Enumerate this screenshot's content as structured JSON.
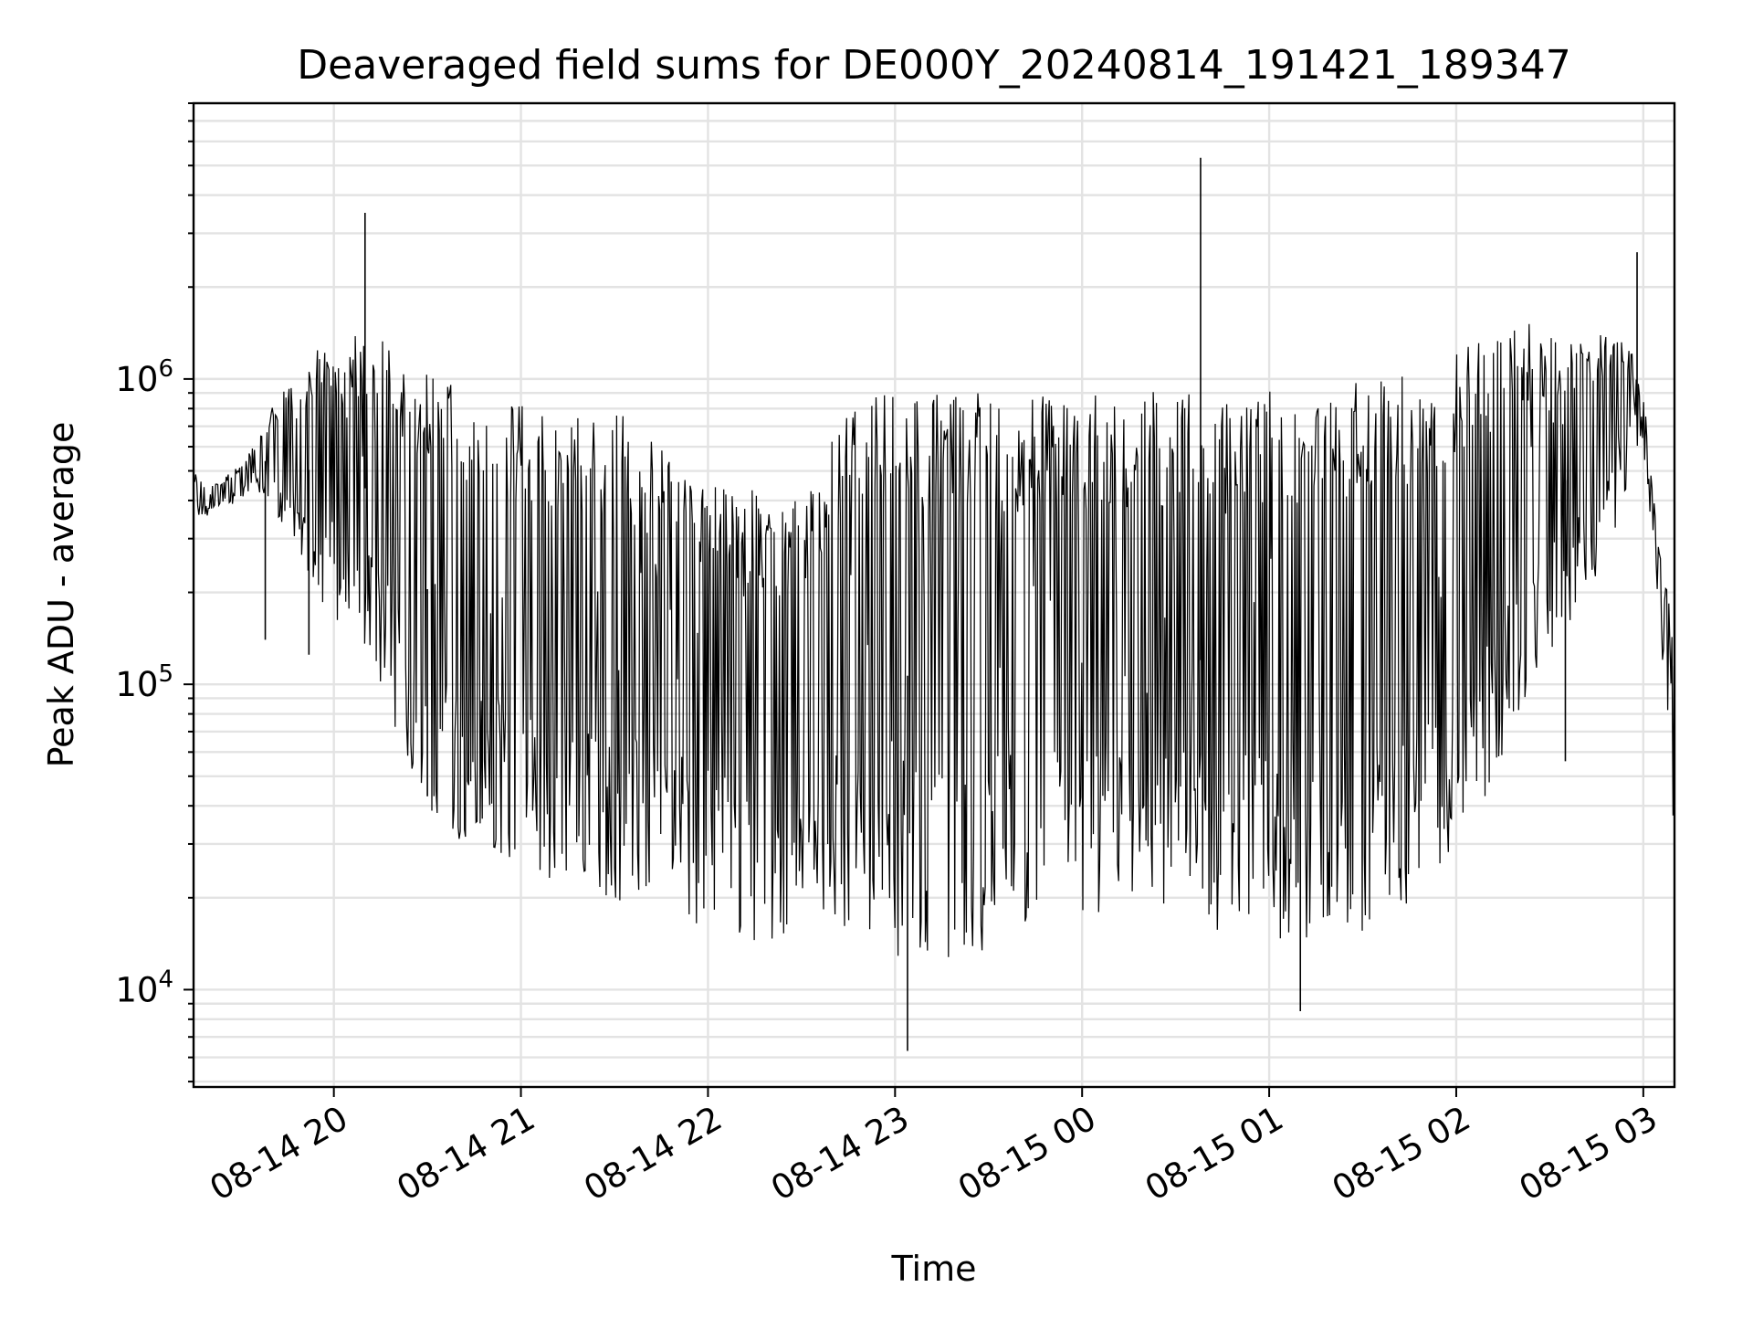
{
  "chart_data": {
    "type": "line",
    "title": "Deaveraged field sums for DE000Y_20240814_191421_189347",
    "xlabel": "Time",
    "ylabel": "Peak ADU - average",
    "y_scale": "log",
    "xlim": [
      "2024-08-14 19:15",
      "2024-08-15 03:10"
    ],
    "ylim": [
      4800,
      8000000
    ],
    "grid": true,
    "legend": "none",
    "line_color": "#000000",
    "x_ticks": [
      {
        "value": "2024-08-14 20:00",
        "label": "08-14 20"
      },
      {
        "value": "2024-08-14 21:00",
        "label": "08-14 21"
      },
      {
        "value": "2024-08-14 22:00",
        "label": "08-14 22"
      },
      {
        "value": "2024-08-14 23:00",
        "label": "08-14 23"
      },
      {
        "value": "2024-08-15 00:00",
        "label": "08-15 00"
      },
      {
        "value": "2024-08-15 01:00",
        "label": "08-15 01"
      },
      {
        "value": "2024-08-15 02:00",
        "label": "08-15 02"
      },
      {
        "value": "2024-08-15 03:00",
        "label": "08-15 03"
      }
    ],
    "y_ticks": [
      {
        "value": 10000,
        "base": "10",
        "exp": "4"
      },
      {
        "value": 100000,
        "base": "10",
        "exp": "5"
      },
      {
        "value": 1000000,
        "base": "10",
        "exp": "6"
      }
    ],
    "series": [
      {
        "x": [
          "2024-08-14 19:15",
          "2024-08-14 19:20",
          "2024-08-14 19:25",
          "2024-08-14 19:30",
          "2024-08-14 19:35",
          "2024-08-14 19:40",
          "2024-08-14 19:45",
          "2024-08-14 19:50",
          "2024-08-14 19:55",
          "2024-08-14 20:00",
          "2024-08-14 20:05",
          "2024-08-14 20:10",
          "2024-08-14 20:15",
          "2024-08-14 20:20",
          "2024-08-14 20:25",
          "2024-08-14 20:30",
          "2024-08-14 20:35",
          "2024-08-14 20:40",
          "2024-08-14 20:45",
          "2024-08-14 20:50",
          "2024-08-14 20:55",
          "2024-08-14 21:00",
          "2024-08-14 21:05",
          "2024-08-14 21:10",
          "2024-08-14 21:15",
          "2024-08-14 21:20",
          "2024-08-14 21:25",
          "2024-08-14 21:30",
          "2024-08-14 21:35",
          "2024-08-14 21:40",
          "2024-08-14 21:45",
          "2024-08-14 21:50",
          "2024-08-14 21:55",
          "2024-08-14 22:00",
          "2024-08-14 22:05",
          "2024-08-14 22:10",
          "2024-08-14 22:15",
          "2024-08-14 22:20",
          "2024-08-14 22:25",
          "2024-08-14 22:30",
          "2024-08-14 22:35",
          "2024-08-14 22:40",
          "2024-08-14 22:45",
          "2024-08-14 22:50",
          "2024-08-14 22:55",
          "2024-08-14 23:00",
          "2024-08-14 23:05",
          "2024-08-14 23:10",
          "2024-08-14 23:15",
          "2024-08-14 23:20",
          "2024-08-14 23:25",
          "2024-08-14 23:30",
          "2024-08-14 23:35",
          "2024-08-14 23:40",
          "2024-08-14 23:45",
          "2024-08-14 23:50",
          "2024-08-14 23:55",
          "2024-08-15 00:00",
          "2024-08-15 00:05",
          "2024-08-15 00:10",
          "2024-08-15 00:15",
          "2024-08-15 00:20",
          "2024-08-15 00:25",
          "2024-08-15 00:30",
          "2024-08-15 00:35",
          "2024-08-15 00:40",
          "2024-08-15 00:45",
          "2024-08-15 00:50",
          "2024-08-15 00:55",
          "2024-08-15 01:00",
          "2024-08-15 01:05",
          "2024-08-15 01:10",
          "2024-08-15 01:15",
          "2024-08-15 01:20",
          "2024-08-15 01:25",
          "2024-08-15 01:30",
          "2024-08-15 01:35",
          "2024-08-15 01:40",
          "2024-08-15 01:45",
          "2024-08-15 01:50",
          "2024-08-15 01:55",
          "2024-08-15 02:00",
          "2024-08-15 02:05",
          "2024-08-15 02:10",
          "2024-08-15 02:15",
          "2024-08-15 02:20",
          "2024-08-15 02:25",
          "2024-08-15 02:30",
          "2024-08-15 02:35",
          "2024-08-15 02:40",
          "2024-08-15 02:45",
          "2024-08-15 02:50",
          "2024-08-15 02:55",
          "2024-08-15 03:00",
          "2024-08-15 03:05",
          "2024-08-15 03:10"
        ],
        "high": [
          500000,
          450000,
          480000,
          520000,
          620000,
          850000,
          950000,
          1000000,
          1300000,
          1400000,
          1300000,
          1600000,
          1500000,
          1200000,
          1100000,
          1050000,
          1000000,
          950000,
          900000,
          880000,
          860000,
          850000,
          830000,
          820000,
          800000,
          790000,
          780000,
          770000,
          760000,
          700000,
          650000,
          600000,
          550000,
          500000,
          480000,
          460000,
          430000,
          400000,
          380000,
          420000,
          500000,
          700000,
          850000,
          900000,
          900000,
          920000,
          900000,
          900000,
          900000,
          880000,
          900000,
          900000,
          900000,
          900000,
          900000,
          900000,
          900000,
          900000,
          900000,
          900000,
          900000,
          920000,
          900000,
          900000,
          900000,
          900000,
          900000,
          920000,
          950000,
          950000,
          950000,
          950000,
          1000000,
          1000000,
          1050000,
          1000000,
          1100000,
          1100000,
          1100000,
          1150000,
          1200000,
          1250000,
          1350000,
          1400000,
          1500000,
          1500000,
          1550000,
          1500000,
          1450000,
          1400000,
          1450000,
          1500000,
          1350000,
          900000,
          280000,
          150000
        ],
        "low": [
          350000,
          350000,
          380000,
          400000,
          450000,
          350000,
          300000,
          250000,
          200000,
          150000,
          130000,
          120000,
          100000,
          70000,
          50000,
          40000,
          35000,
          30000,
          28000,
          27000,
          26000,
          25000,
          24000,
          23000,
          22000,
          21000,
          20000,
          19000,
          18500,
          18000,
          17500,
          17000,
          16500,
          16000,
          15500,
          15000,
          14500,
          14000,
          15000,
          16000,
          17000,
          16000,
          15000,
          14000,
          13500,
          13000,
          12500,
          12000,
          12000,
          12500,
          13000,
          13500,
          14000,
          14500,
          15000,
          15000,
          15500,
          16000,
          17000,
          18000,
          18000,
          17500,
          17000,
          16500,
          16000,
          16000,
          15500,
          15000,
          14500,
          14000,
          14000,
          13500,
          14000,
          14500,
          15000,
          15500,
          16000,
          17000,
          18000,
          20000,
          24000,
          30000,
          35000,
          40000,
          60000,
          80000,
          100000,
          120000,
          150000,
          180000,
          220000,
          300000,
          450000,
          600000,
          180000,
          30000
        ],
        "spikes": [
          {
            "x": "2024-08-14 20:10",
            "y": 3500000
          },
          {
            "x": "2024-08-15 00:38",
            "y": 5300000
          },
          {
            "x": "2024-08-15 02:58",
            "y": 2600000
          },
          {
            "x": "2024-08-14 23:04",
            "y": 6300
          },
          {
            "x": "2024-08-15 01:10",
            "y": 8500
          },
          {
            "x": "2024-08-14 19:52",
            "y": 125000
          },
          {
            "x": "2024-08-14 19:38",
            "y": 140000
          },
          {
            "x": "2024-08-14 20:30",
            "y": 43000
          },
          {
            "x": "2024-08-15 02:35",
            "y": 56000
          }
        ]
      }
    ]
  }
}
